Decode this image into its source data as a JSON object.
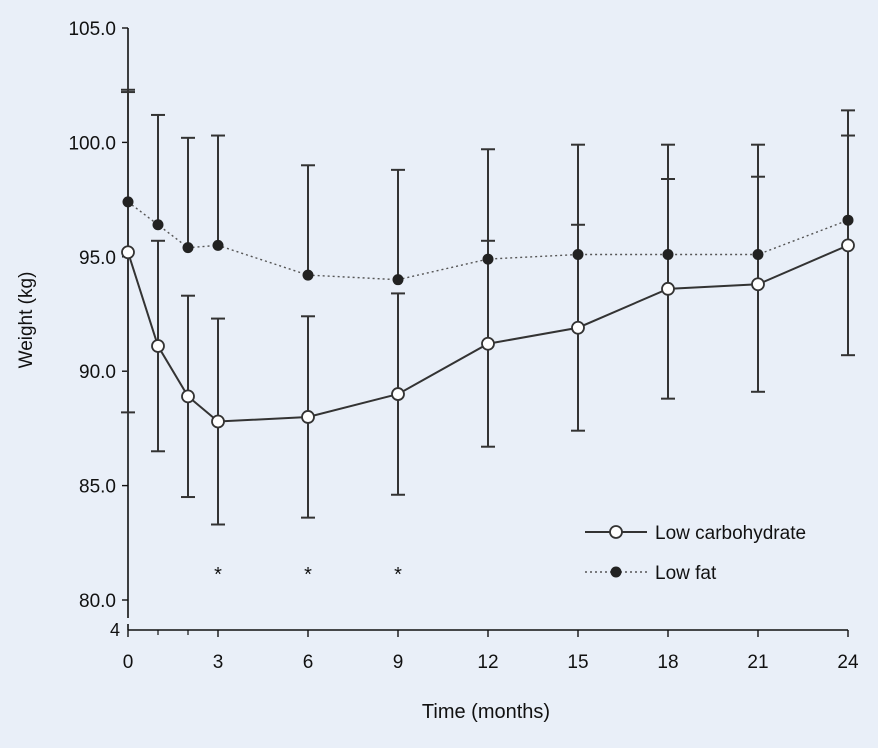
{
  "chart_data": {
    "type": "line",
    "title": "",
    "xlabel": "Time (months)",
    "ylabel": "Weight (kg)",
    "xlim": [
      0,
      24
    ],
    "ylim": [
      80,
      105
    ],
    "x_ticks": [
      0,
      3,
      6,
      9,
      12,
      15,
      18,
      21,
      24
    ],
    "x_minor_ticks": [
      1,
      2
    ],
    "y_ticks": [
      80,
      85,
      90,
      95,
      100,
      105
    ],
    "y_tick_labels": [
      "80.0",
      "85.0",
      "90.0",
      "95.0",
      "100.0",
      "105.0"
    ],
    "y_axis_break_label": "4",
    "legend_position": "bottom-right",
    "grid": false,
    "series": [
      {
        "name": "Low carbohydrate",
        "marker": "open-circle",
        "line_style": "solid",
        "x": [
          0,
          1,
          2,
          3,
          6,
          9,
          12,
          15,
          18,
          21,
          24
        ],
        "values": [
          95.2,
          91.1,
          88.9,
          87.8,
          88.0,
          89.0,
          91.2,
          91.9,
          93.6,
          93.8,
          95.5
        ],
        "error": [
          7.0,
          4.6,
          4.4,
          4.5,
          4.4,
          4.4,
          4.5,
          4.5,
          4.8,
          4.7,
          4.8
        ]
      },
      {
        "name": "Low fat",
        "marker": "filled-diamond",
        "line_style": "dotted",
        "x": [
          0,
          1,
          2,
          3,
          6,
          9,
          12,
          15,
          18,
          21,
          24
        ],
        "values": [
          97.4,
          96.4,
          95.4,
          95.5,
          94.2,
          94.0,
          94.9,
          95.1,
          95.1,
          95.1,
          96.6
        ],
        "error": [
          4.9,
          4.8,
          4.8,
          4.8,
          4.8,
          4.8,
          4.8,
          4.8,
          4.8,
          4.8,
          4.8
        ]
      }
    ],
    "annotations": [
      {
        "text": "*",
        "x": 3
      },
      {
        "text": "*",
        "x": 6
      },
      {
        "text": "*",
        "x": 9
      }
    ]
  }
}
